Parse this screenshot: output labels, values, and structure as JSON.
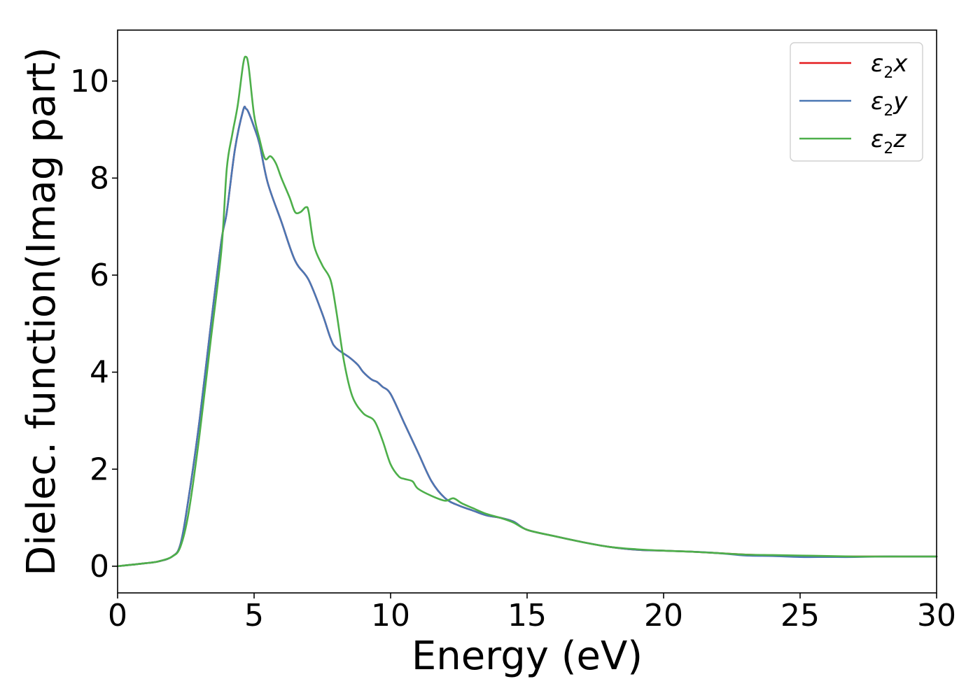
{
  "chart_data": {
    "type": "line",
    "title": "",
    "xlabel": "Energy (eV)",
    "ylabel": "Dielec. function(Imag part)",
    "xlim": [
      0,
      30
    ],
    "ylim": [
      -0.55,
      11.05
    ],
    "xticks": [
      0,
      5,
      10,
      15,
      20,
      25,
      30
    ],
    "yticks": [
      0,
      2,
      4,
      6,
      8,
      10
    ],
    "grid": false,
    "legend_position": "top-right",
    "series": [
      {
        "name": "x",
        "legend_symbol": "ε",
        "legend_subscript": "2",
        "color": "#e41a1c",
        "x": [
          0,
          0.5,
          1.0,
          1.5,
          2.0,
          2.3,
          2.6,
          3.0,
          3.4,
          3.8,
          4.0,
          4.3,
          4.6,
          4.7,
          4.8,
          5.0,
          5.2,
          5.5,
          6.0,
          6.5,
          7.0,
          7.5,
          7.8,
          8.0,
          8.5,
          8.8,
          9.0,
          9.3,
          9.5,
          9.7,
          10.0,
          10.5,
          11.0,
          11.5,
          12.0,
          12.5,
          13.0,
          13.5,
          14.0,
          14.5,
          15.0,
          16.0,
          17.0,
          18.0,
          19.0,
          20.0,
          21.0,
          22.0,
          23.0,
          24.0,
          25.0,
          26.0,
          27.0,
          28.0,
          29.0,
          30.0
        ],
        "y": [
          0,
          0.03,
          0.06,
          0.1,
          0.2,
          0.45,
          1.4,
          3.0,
          4.9,
          6.7,
          7.3,
          8.6,
          9.4,
          9.43,
          9.35,
          9.05,
          8.7,
          7.9,
          7.1,
          6.3,
          5.9,
          5.2,
          4.7,
          4.5,
          4.3,
          4.15,
          4.0,
          3.85,
          3.8,
          3.7,
          3.55,
          2.95,
          2.35,
          1.75,
          1.4,
          1.25,
          1.15,
          1.05,
          1.0,
          0.92,
          0.75,
          0.62,
          0.5,
          0.4,
          0.34,
          0.32,
          0.3,
          0.27,
          0.24,
          0.22,
          0.21,
          0.2,
          0.2,
          0.2,
          0.2,
          0.2
        ]
      },
      {
        "name": "y",
        "legend_symbol": "ε",
        "legend_subscript": "2",
        "color": "#4a77b4",
        "x": [
          0,
          0.5,
          1.0,
          1.5,
          2.0,
          2.3,
          2.6,
          3.0,
          3.4,
          3.8,
          4.0,
          4.3,
          4.6,
          4.7,
          4.8,
          5.0,
          5.2,
          5.5,
          6.0,
          6.5,
          7.0,
          7.5,
          7.8,
          8.0,
          8.5,
          8.8,
          9.0,
          9.3,
          9.5,
          9.7,
          10.0,
          10.5,
          11.0,
          11.5,
          12.0,
          12.5,
          13.0,
          13.5,
          14.0,
          14.5,
          15.0,
          16.0,
          17.0,
          18.0,
          19.0,
          20.0,
          21.0,
          22.0,
          23.0,
          24.0,
          25.0,
          26.0,
          27.0,
          28.0,
          29.0,
          30.0
        ],
        "y": [
          0,
          0.03,
          0.06,
          0.1,
          0.2,
          0.45,
          1.4,
          3.0,
          4.9,
          6.7,
          7.3,
          8.6,
          9.4,
          9.43,
          9.35,
          9.05,
          8.7,
          7.9,
          7.1,
          6.3,
          5.9,
          5.2,
          4.7,
          4.5,
          4.3,
          4.15,
          4.0,
          3.85,
          3.8,
          3.7,
          3.55,
          2.95,
          2.35,
          1.75,
          1.4,
          1.25,
          1.15,
          1.05,
          1.0,
          0.92,
          0.75,
          0.62,
          0.5,
          0.4,
          0.34,
          0.32,
          0.3,
          0.27,
          0.22,
          0.21,
          0.19,
          0.19,
          0.19,
          0.2,
          0.2,
          0.2
        ]
      },
      {
        "name": "z",
        "legend_symbol": "ε",
        "legend_subscript": "2",
        "color": "#4daf4a",
        "x": [
          0,
          0.5,
          1.0,
          1.5,
          2.0,
          2.3,
          2.6,
          3.0,
          3.4,
          3.8,
          4.0,
          4.2,
          4.4,
          4.6,
          4.7,
          4.8,
          5.0,
          5.2,
          5.4,
          5.6,
          5.8,
          6.0,
          6.3,
          6.5,
          6.7,
          6.9,
          7.0,
          7.2,
          7.5,
          7.8,
          8.0,
          8.3,
          8.6,
          9.0,
          9.4,
          9.7,
          10.0,
          10.3,
          10.5,
          10.8,
          11.0,
          11.5,
          12.0,
          12.3,
          12.6,
          13.0,
          13.5,
          14.0,
          14.5,
          15.0,
          16.0,
          17.0,
          18.0,
          19.0,
          20.0,
          21.0,
          22.0,
          23.0,
          24.0,
          25.0,
          26.0,
          27.0,
          28.0,
          29.0,
          30.0
        ],
        "y": [
          0,
          0.03,
          0.06,
          0.1,
          0.2,
          0.4,
          1.1,
          2.7,
          4.6,
          6.5,
          8.2,
          8.9,
          9.5,
          10.35,
          10.5,
          10.3,
          9.3,
          8.8,
          8.4,
          8.45,
          8.3,
          8.0,
          7.6,
          7.3,
          7.3,
          7.4,
          7.3,
          6.6,
          6.2,
          5.9,
          5.3,
          4.2,
          3.5,
          3.15,
          3.0,
          2.6,
          2.1,
          1.85,
          1.8,
          1.75,
          1.6,
          1.45,
          1.35,
          1.4,
          1.3,
          1.2,
          1.08,
          1.0,
          0.9,
          0.75,
          0.62,
          0.5,
          0.4,
          0.35,
          0.32,
          0.3,
          0.27,
          0.24,
          0.23,
          0.22,
          0.21,
          0.2,
          0.2,
          0.2,
          0.2
        ]
      }
    ]
  }
}
